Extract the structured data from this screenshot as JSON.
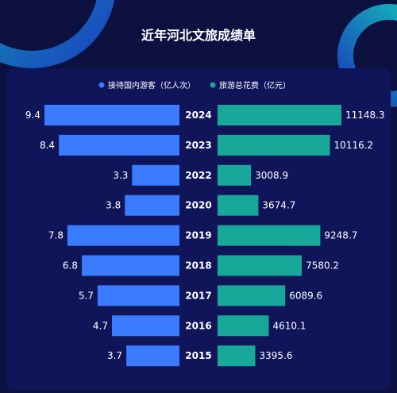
{
  "chart_data": {
    "type": "bar",
    "title": "近年河北文旅成绩单",
    "categories": [
      "2024",
      "2023",
      "2022",
      "2020",
      "2019",
      "2018",
      "2017",
      "2016",
      "2015"
    ],
    "series": [
      {
        "name": "接待国内游客（亿人次）",
        "color": "#3a7bff",
        "values": [
          9.4,
          8.4,
          3.3,
          3.8,
          7.8,
          6.8,
          5.7,
          4.7,
          3.7
        ]
      },
      {
        "name": "旅游总花费（亿元）",
        "color": "#17a89a",
        "values": [
          11148.3,
          10116.2,
          3008.9,
          3674.7,
          9248.7,
          7580.2,
          6089.6,
          4610.1,
          3395.6
        ]
      }
    ],
    "legend_position": "top",
    "grid": false,
    "xlabel": "",
    "ylabel": ""
  }
}
